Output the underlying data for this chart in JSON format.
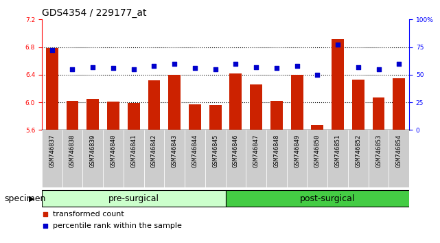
{
  "title": "GDS4354 / 229177_at",
  "categories": [
    "GSM746837",
    "GSM746838",
    "GSM746839",
    "GSM746840",
    "GSM746841",
    "GSM746842",
    "GSM746843",
    "GSM746844",
    "GSM746845",
    "GSM746846",
    "GSM746847",
    "GSM746848",
    "GSM746849",
    "GSM746850",
    "GSM746851",
    "GSM746852",
    "GSM746853",
    "GSM746854"
  ],
  "bar_values": [
    6.79,
    6.02,
    6.05,
    6.01,
    5.99,
    6.32,
    6.4,
    5.97,
    5.96,
    6.42,
    6.26,
    6.02,
    6.4,
    5.67,
    6.92,
    6.33,
    6.07,
    6.35
  ],
  "dot_values": [
    72,
    55,
    57,
    56,
    55,
    58,
    60,
    56,
    55,
    60,
    57,
    56,
    58,
    50,
    77,
    57,
    55,
    60
  ],
  "bar_color": "#cc2200",
  "dot_color": "#0000cc",
  "ylim_left": [
    5.6,
    7.2
  ],
  "ylim_right": [
    0,
    100
  ],
  "yticks_left": [
    5.6,
    6.0,
    6.4,
    6.8,
    7.2
  ],
  "yticks_right": [
    0,
    25,
    50,
    75,
    100
  ],
  "ytick_labels_right": [
    "0",
    "25",
    "50",
    "75",
    "100%"
  ],
  "grid_values": [
    6.0,
    6.4,
    6.8
  ],
  "pre_surgical_count": 9,
  "post_surgical_count": 9,
  "groups": [
    {
      "label": "pre-surgical",
      "start": 0,
      "end": 9,
      "color": "#ccffcc"
    },
    {
      "label": "post-surgical",
      "start": 9,
      "end": 18,
      "color": "#44cc44"
    }
  ],
  "legend": [
    {
      "label": "transformed count",
      "color": "#cc2200"
    },
    {
      "label": "percentile rank within the sample",
      "color": "#0000cc"
    }
  ],
  "background_color": "#ffffff",
  "tick_bg_color": "#cccccc",
  "title_fontsize": 10,
  "tick_fontsize": 6.5,
  "label_fontsize": 8,
  "group_fontsize": 9
}
